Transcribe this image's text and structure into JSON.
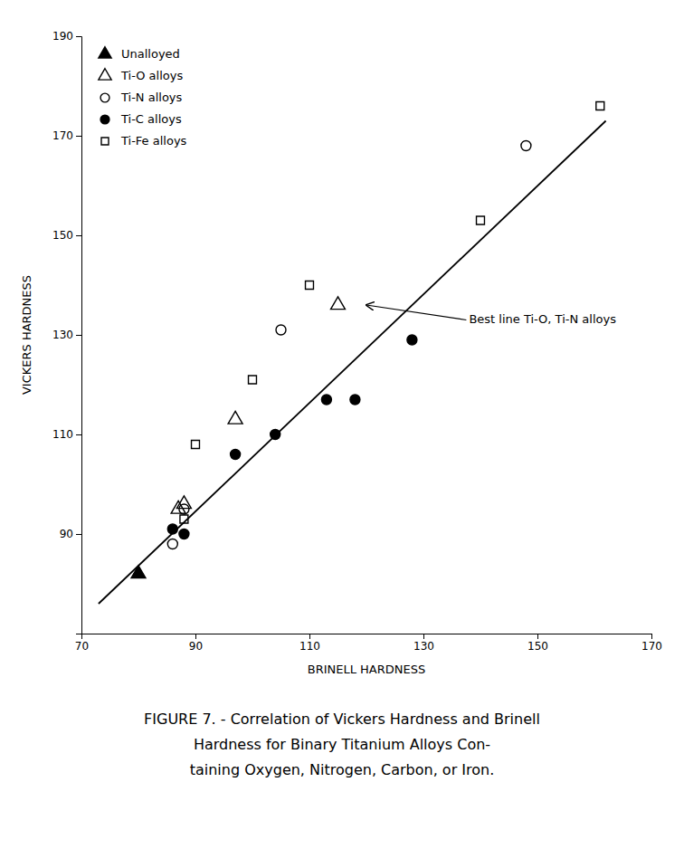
{
  "chart_data": {
    "type": "scatter",
    "xlabel": "BRINELL HARDNESS",
    "ylabel": "VICKERS HARDNESS",
    "xlim": [
      70,
      170
    ],
    "ylim": [
      70,
      190
    ],
    "xticks": [
      70,
      90,
      110,
      130,
      150,
      170
    ],
    "yticks": [
      90,
      110,
      130,
      150,
      170,
      190
    ],
    "grid": false,
    "legend": "upper-left",
    "series": [
      {
        "name": "Unalloyed",
        "type": "scatter",
        "marker": "triangle",
        "color": "#000000",
        "x": [
          80
        ],
        "values": [
          82
        ]
      },
      {
        "name": "Ti-O alloys",
        "type": "scatter",
        "marker": "triangle-open",
        "color": "#000000",
        "x": [
          87,
          88,
          97,
          115
        ],
        "values": [
          95,
          96,
          113,
          136
        ]
      },
      {
        "name": "Ti-N alloys",
        "type": "scatter",
        "marker": "circle-open",
        "color": "#000000",
        "x": [
          86,
          88,
          105,
          148
        ],
        "values": [
          88,
          95,
          131,
          168
        ]
      },
      {
        "name": "Ti-C alloys",
        "type": "scatter",
        "marker": "circle",
        "color": "#000000",
        "x": [
          86,
          88,
          97,
          104,
          113,
          118,
          128
        ],
        "values": [
          91,
          90,
          106,
          110,
          117,
          117,
          129
        ]
      },
      {
        "name": "Ti-Fe alloys",
        "type": "scatter",
        "marker": "square-open",
        "color": "#000000",
        "x": [
          88,
          90,
          100,
          110,
          140,
          161
        ],
        "values": [
          93,
          108,
          121,
          140,
          153,
          176
        ]
      },
      {
        "type": "line",
        "line_style": "solid",
        "color": "#000000",
        "x": [
          73,
          162
        ],
        "values": [
          76,
          173
        ]
      }
    ],
    "annotations": [
      {
        "text": "Best line Ti-O, Ti-N alloys",
        "x": 138,
        "y": 133,
        "arrow_x": 120,
        "arrow_y": 136
      }
    ],
    "caption": [
      "FIGURE 7. - Correlation of Vickers Hardness and Brinell",
      "Hardness for Binary Titanium Alloys Con-",
      "taining Oxygen, Nitrogen, Carbon, or Iron."
    ]
  }
}
